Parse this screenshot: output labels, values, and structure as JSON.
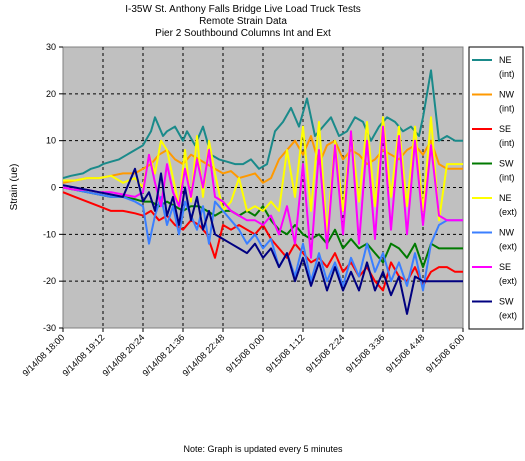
{
  "chart_data": {
    "type": "line",
    "title": [
      "I-35W St. Anthony Falls Bridge Live Load Truck Tests",
      "Remote Strain Data",
      "Pier 2 Southbound Columns Int and Ext"
    ],
    "ylabel": "Strain (ue)",
    "xlabel": "",
    "ylim": [
      -30,
      30
    ],
    "yticks": [
      30,
      20,
      10,
      0,
      -10,
      -20,
      -30
    ],
    "xticks": [
      "9/14/08 18:00",
      "9/14/08 19:12",
      "9/14/08 20:24",
      "9/14/08 21:36",
      "9/14/08 22:48",
      "9/15/08 0:00",
      "9/15/08 1:12",
      "9/15/08 2:24",
      "9/15/08 3:36",
      "9/15/08 4:48",
      "9/15/08 6:00"
    ],
    "grid": true,
    "legend_position": "right",
    "note": "Note: Graph is updated every 5 minutes",
    "series": [
      {
        "key": "ne_int",
        "label1": "NE",
        "label2": "(int)",
        "color": "#1a8a8a",
        "x": [
          0,
          0.2,
          0.5,
          0.7,
          0.9,
          1.0,
          1.2,
          1.4,
          1.6,
          1.8,
          2.0,
          2.2,
          2.3,
          2.5,
          2.6,
          2.8,
          3.0,
          3.1,
          3.3,
          3.5,
          3.7,
          3.9,
          4.1,
          4.3,
          4.5,
          4.7,
          4.9,
          5.1,
          5.3,
          5.5,
          5.7,
          5.9,
          6.1,
          6.3,
          6.5,
          6.7,
          6.9,
          7.1,
          7.3,
          7.5,
          7.7,
          7.9,
          8.1,
          8.3,
          8.5,
          8.7,
          8.9,
          9.0,
          9.2,
          9.4,
          9.6,
          9.8,
          10.0
        ],
        "y": [
          2,
          2.5,
          3,
          4,
          4.5,
          5,
          5.5,
          6,
          7,
          8,
          9,
          12,
          15,
          11,
          12,
          13,
          10,
          12,
          9,
          13,
          7,
          6,
          5.5,
          5,
          5,
          6,
          4,
          5,
          12,
          14,
          17,
          13,
          19,
          11,
          13,
          15,
          11,
          12,
          15,
          14,
          10,
          13,
          15,
          14,
          12,
          13,
          11,
          15,
          25,
          10,
          11,
          10,
          10
        ]
      },
      {
        "key": "nw_int",
        "label1": "NW",
        "label2": "(int)",
        "color": "#ff9900",
        "x": [
          0,
          0.3,
          0.6,
          0.9,
          1.2,
          1.5,
          1.8,
          2.0,
          2.2,
          2.4,
          2.6,
          2.8,
          3.0,
          3.2,
          3.4,
          3.6,
          3.8,
          4.0,
          4.2,
          4.4,
          4.6,
          4.8,
          5.0,
          5.2,
          5.4,
          5.6,
          5.8,
          6.0,
          6.2,
          6.4,
          6.6,
          6.8,
          7.0,
          7.2,
          7.4,
          7.6,
          7.8,
          8.0,
          8.2,
          8.4,
          8.6,
          8.8,
          9.0,
          9.2,
          9.4,
          9.6,
          9.8,
          10.0
        ],
        "y": [
          1,
          1.5,
          2,
          2,
          2.5,
          3,
          3,
          4,
          5,
          7,
          8,
          6,
          5,
          7,
          6,
          5,
          4,
          3,
          3.5,
          2,
          2.5,
          3,
          1,
          2,
          6,
          8,
          10,
          7,
          11,
          5,
          9,
          10,
          6,
          8,
          7,
          5,
          6,
          8,
          7,
          6,
          8,
          9,
          7,
          10,
          5,
          4,
          4,
          4
        ]
      },
      {
        "key": "se_int",
        "label1": "SE",
        "label2": "(int)",
        "color": "#ff0000",
        "x": [
          0,
          0.3,
          0.6,
          0.9,
          1.2,
          1.5,
          1.8,
          2.0,
          2.2,
          2.4,
          2.6,
          2.8,
          3.0,
          3.2,
          3.4,
          3.6,
          3.8,
          4.0,
          4.2,
          4.4,
          4.6,
          4.8,
          5.0,
          5.2,
          5.4,
          5.6,
          5.8,
          6.0,
          6.2,
          6.4,
          6.6,
          6.8,
          7.0,
          7.2,
          7.4,
          7.6,
          7.8,
          8.0,
          8.2,
          8.4,
          8.6,
          8.8,
          9.0,
          9.2,
          9.4,
          9.6,
          9.8,
          10.0
        ],
        "y": [
          -1,
          -2,
          -3,
          -4,
          -5,
          -5,
          -5.5,
          -6,
          -5,
          -7,
          -6,
          -8,
          -9,
          -7,
          -8,
          -10,
          -15,
          -8,
          -9,
          -8,
          -9,
          -10,
          -8,
          -11,
          -13,
          -15,
          -12,
          -14,
          -16,
          -15,
          -17,
          -14,
          -18,
          -16,
          -19,
          -17,
          -20,
          -22,
          -16,
          -19,
          -20,
          -17,
          -21,
          -18,
          -17,
          -17,
          -18,
          -18
        ]
      },
      {
        "key": "sw_int",
        "label1": "SW",
        "label2": "(int)",
        "color": "#007a00",
        "x": [
          0,
          0.3,
          0.6,
          0.9,
          1.2,
          1.5,
          1.8,
          2.0,
          2.2,
          2.4,
          2.6,
          2.8,
          3.0,
          3.2,
          3.4,
          3.6,
          3.8,
          4.0,
          4.2,
          4.4,
          4.6,
          4.8,
          5.0,
          5.2,
          5.4,
          5.6,
          5.8,
          6.0,
          6.2,
          6.4,
          6.6,
          6.8,
          7.0,
          7.2,
          7.4,
          7.6,
          7.8,
          8.0,
          8.2,
          8.4,
          8.6,
          8.8,
          9.0,
          9.2,
          9.4,
          9.6,
          9.8,
          10.0
        ],
        "y": [
          0,
          -0.5,
          -1,
          -1.5,
          -2,
          -2,
          -2.5,
          -3,
          -3,
          -4,
          -3,
          -4,
          -5,
          -4,
          -4,
          -5,
          -6,
          -5,
          -5,
          -6,
          -5,
          -6,
          -4,
          -7,
          -9,
          -10,
          -8,
          -10,
          -11,
          -10,
          -12,
          -9,
          -13,
          -11,
          -13,
          -12,
          -14,
          -16,
          -12,
          -13,
          -15,
          -12,
          -17,
          -12,
          -13,
          -13,
          -13,
          -13
        ]
      },
      {
        "key": "ne_ext",
        "label1": "NE",
        "label2": "(ext)",
        "color": "#ffff00",
        "x": [
          0,
          0.3,
          0.6,
          0.9,
          1.2,
          1.5,
          1.8,
          2.0,
          2.15,
          2.3,
          2.45,
          2.6,
          2.75,
          2.9,
          3.05,
          3.2,
          3.35,
          3.5,
          3.65,
          3.8,
          4.0,
          4.2,
          4.4,
          4.6,
          4.8,
          5.0,
          5.2,
          5.4,
          5.6,
          5.8,
          6.0,
          6.2,
          6.4,
          6.6,
          6.8,
          7.0,
          7.2,
          7.4,
          7.6,
          7.8,
          8.0,
          8.2,
          8.4,
          8.6,
          8.8,
          9.0,
          9.2,
          9.4,
          9.6,
          9.8,
          10.0
        ],
        "y": [
          1.5,
          1.5,
          2,
          2,
          2.5,
          1,
          2,
          0,
          7,
          3,
          10,
          8,
          2,
          -4,
          8,
          -3,
          11,
          -2,
          10,
          3,
          -5,
          -3,
          2,
          -5,
          -4,
          -5,
          -3,
          -5,
          8,
          -2,
          13,
          -5,
          14,
          -10,
          10,
          -5,
          12,
          -3,
          14,
          -4,
          15,
          -2,
          13,
          -4,
          13,
          -5,
          15,
          -7,
          5,
          5,
          5
        ]
      },
      {
        "key": "nw_ext",
        "label1": "NW",
        "label2": "(ext)",
        "color": "#3b7fff",
        "x": [
          0,
          0.3,
          0.6,
          0.9,
          1.2,
          1.5,
          1.8,
          2.0,
          2.15,
          2.3,
          2.45,
          2.6,
          2.75,
          2.9,
          3.05,
          3.2,
          3.35,
          3.5,
          3.65,
          3.8,
          4.0,
          4.2,
          4.4,
          4.6,
          4.8,
          5.0,
          5.2,
          5.4,
          5.6,
          5.8,
          6.0,
          6.2,
          6.4,
          6.6,
          6.8,
          7.0,
          7.2,
          7.4,
          7.6,
          7.8,
          8.0,
          8.2,
          8.4,
          8.6,
          8.8,
          9.0,
          9.2,
          9.4,
          9.6,
          9.8,
          10.0
        ],
        "y": [
          0,
          -0.5,
          -1,
          -1.5,
          -2,
          -2,
          -3,
          -4,
          -12,
          -6,
          -2,
          -8,
          -4,
          -10,
          -3,
          -6,
          -9,
          -4,
          -12,
          -3,
          -5,
          -7,
          -9,
          -12,
          -10,
          -13,
          -11,
          -17,
          -14,
          -19,
          -12,
          -20,
          -14,
          -20,
          -16,
          -21,
          -15,
          -19,
          -12,
          -18,
          -14,
          -20,
          -16,
          -21,
          -14,
          -22,
          -12,
          -8,
          -7,
          -7,
          -7
        ]
      },
      {
        "key": "se_ext",
        "label1": "SE",
        "label2": "(ext)",
        "color": "#ff00ff",
        "x": [
          0,
          0.3,
          0.6,
          0.9,
          1.2,
          1.5,
          1.8,
          2.0,
          2.15,
          2.3,
          2.45,
          2.6,
          2.75,
          2.9,
          3.05,
          3.2,
          3.35,
          3.5,
          3.65,
          3.8,
          4.0,
          4.2,
          4.4,
          4.6,
          4.8,
          5.0,
          5.2,
          5.4,
          5.6,
          5.8,
          6.0,
          6.2,
          6.4,
          6.6,
          6.8,
          7.0,
          7.2,
          7.4,
          7.6,
          7.8,
          8.0,
          8.2,
          8.4,
          8.6,
          8.8,
          9.0,
          9.2,
          9.4,
          9.6,
          9.8,
          10.0
        ],
        "y": [
          0,
          -0.5,
          -0.5,
          -1,
          -1,
          -1.5,
          -2,
          -1,
          7,
          1,
          -4,
          5,
          -1,
          -4,
          4,
          -2,
          6,
          0,
          8,
          -2,
          -3,
          -5,
          -6,
          -7,
          -7,
          -8,
          -6,
          -10,
          -4,
          -12,
          5,
          -15,
          8,
          -13,
          9,
          -10,
          12,
          -12,
          10,
          -11,
          13,
          -9,
          11,
          -10,
          10,
          -8,
          9,
          -6,
          -7,
          -7,
          -7
        ]
      },
      {
        "key": "sw_ext",
        "label1": "SW",
        "label2": "(ext)",
        "color": "#000080",
        "x": [
          0,
          0.3,
          0.6,
          0.9,
          1.2,
          1.5,
          1.8,
          2.0,
          2.15,
          2.3,
          2.45,
          2.6,
          2.75,
          2.9,
          3.05,
          3.2,
          3.35,
          3.5,
          3.65,
          3.8,
          4.0,
          4.2,
          4.4,
          4.6,
          4.8,
          5.0,
          5.2,
          5.4,
          5.6,
          5.8,
          6.0,
          6.2,
          6.4,
          6.6,
          6.8,
          7.0,
          7.2,
          7.4,
          7.6,
          7.8,
          8.0,
          8.2,
          8.4,
          8.6,
          8.8,
          9.0,
          9.2,
          9.4,
          9.6,
          9.8,
          10.0
        ],
        "y": [
          0.5,
          0,
          -0.5,
          -1,
          -1.5,
          -2,
          4,
          -3,
          -1,
          -5,
          3,
          -6,
          -2,
          -8,
          0,
          -7,
          -2,
          -9,
          -5,
          -10,
          -11,
          -12,
          -13,
          -14,
          -12,
          -15,
          -13,
          -17,
          -14,
          -20,
          -15,
          -21,
          -16,
          -22,
          -17,
          -22,
          -18,
          -22,
          -16,
          -22,
          -18,
          -23,
          -19,
          -27,
          -19,
          -20,
          -20,
          -20,
          -20,
          -20,
          -20
        ]
      }
    ]
  }
}
